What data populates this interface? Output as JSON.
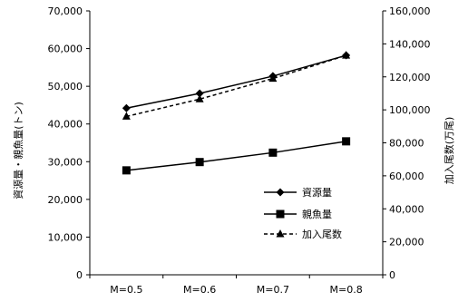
{
  "chart_data": {
    "type": "line",
    "categories": [
      "M=0.5",
      "M=0.6",
      "M=0.7",
      "M=0.8"
    ],
    "y_left": {
      "label": "資源量・親魚量(トン)",
      "range": [
        0,
        70000
      ],
      "ticks": [
        "0",
        "10,000",
        "20,000",
        "30,000",
        "40,000",
        "50,000",
        "60,000",
        "70,000"
      ]
    },
    "y_right": {
      "label": "加入尾数(万尾)",
      "range": [
        0,
        160000
      ],
      "ticks": [
        "0",
        "20,000",
        "40,000",
        "60,000",
        "80,000",
        "100,000",
        "120,000",
        "140,000",
        "160,000"
      ]
    },
    "series": [
      {
        "name": "資源量",
        "axis": "left",
        "marker": "diamond",
        "dash": "solid",
        "values": [
          44200,
          48100,
          52700,
          58200
        ]
      },
      {
        "name": "親魚量",
        "axis": "left",
        "marker": "square",
        "dash": "solid",
        "values": [
          27700,
          29900,
          32400,
          35400
        ]
      },
      {
        "name": "加入尾数",
        "axis": "right",
        "marker": "triangle",
        "dash": "dashed",
        "values": [
          96000,
          106500,
          119000,
          133000
        ]
      }
    ],
    "grid": false,
    "legend_position": "right"
  }
}
